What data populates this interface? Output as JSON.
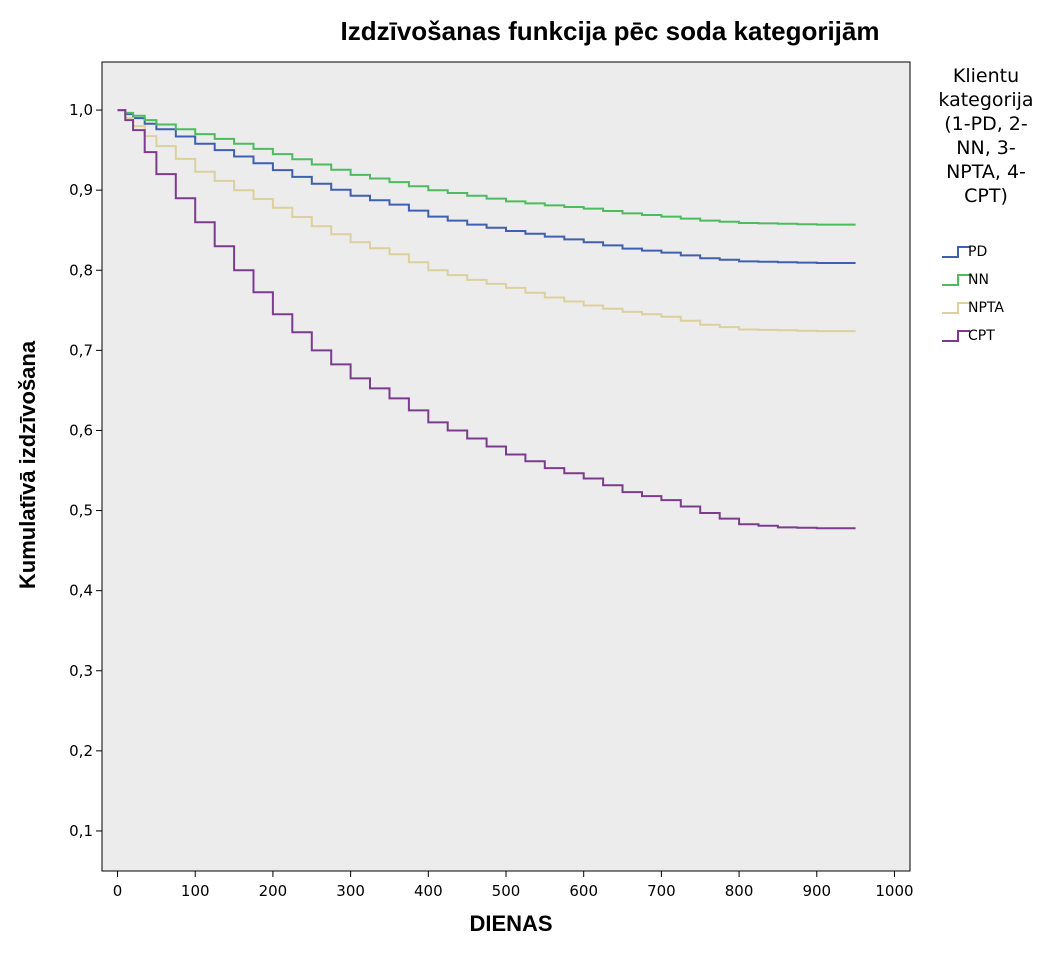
{
  "chart_data": {
    "type": "line",
    "title": "Izdzīvošanas funkcija pēc soda kategorijām",
    "xlabel": "DIENAS",
    "ylabel": "Kumulatīvā izdzīvošana",
    "xlim": [
      -20,
      1020
    ],
    "ylim": [
      0.05,
      1.06
    ],
    "xticks": [
      0,
      100,
      200,
      300,
      400,
      500,
      600,
      700,
      800,
      900,
      1000
    ],
    "xtick_labels": [
      "0",
      "100",
      "200",
      "300",
      "400",
      "500",
      "600",
      "700",
      "800",
      "900",
      "1000"
    ],
    "yticks": [
      0.1,
      0.2,
      0.3,
      0.4,
      0.5,
      0.6,
      0.7,
      0.8,
      0.9,
      1.0
    ],
    "ytick_labels": [
      "0,1",
      "0,2",
      "0,3",
      "0,4",
      "0,5",
      "0,6",
      "0,7",
      "0,8",
      "0,9",
      "1,0"
    ],
    "grid": false,
    "plot_background": "#ececec",
    "legend": {
      "position": "right",
      "title_lines": [
        "Klientu",
        "kategorija",
        "(1-PD, 2-",
        "NN, 3-",
        "NPTA, 4-",
        "CPT)"
      ]
    },
    "series": [
      {
        "name": "PD",
        "color": "#3f5fb0",
        "x": [
          0,
          20,
          50,
          100,
          150,
          200,
          250,
          300,
          350,
          400,
          450,
          500,
          550,
          600,
          650,
          700,
          750,
          800,
          850,
          900,
          950
        ],
        "y": [
          1.0,
          0.99,
          0.976,
          0.958,
          0.942,
          0.925,
          0.908,
          0.893,
          0.882,
          0.867,
          0.857,
          0.849,
          0.842,
          0.835,
          0.827,
          0.822,
          0.815,
          0.811,
          0.81,
          0.809,
          0.809
        ]
      },
      {
        "name": "NN",
        "color": "#4dbb5e",
        "x": [
          0,
          20,
          50,
          100,
          150,
          200,
          250,
          300,
          350,
          400,
          450,
          500,
          550,
          600,
          650,
          700,
          750,
          800,
          850,
          900,
          950
        ],
        "y": [
          1.0,
          0.993,
          0.982,
          0.97,
          0.958,
          0.945,
          0.932,
          0.919,
          0.91,
          0.9,
          0.893,
          0.886,
          0.881,
          0.877,
          0.871,
          0.867,
          0.862,
          0.859,
          0.858,
          0.857,
          0.857
        ]
      },
      {
        "name": "NPTA",
        "color": "#dcd09c",
        "x": [
          0,
          20,
          50,
          100,
          150,
          200,
          250,
          300,
          350,
          400,
          450,
          500,
          550,
          600,
          650,
          700,
          750,
          800,
          850,
          900,
          950
        ],
        "y": [
          1.0,
          0.98,
          0.955,
          0.923,
          0.9,
          0.878,
          0.855,
          0.835,
          0.82,
          0.8,
          0.788,
          0.778,
          0.766,
          0.756,
          0.748,
          0.742,
          0.732,
          0.726,
          0.725,
          0.724,
          0.724
        ]
      },
      {
        "name": "CPT",
        "color": "#7d3b8f",
        "x": [
          0,
          20,
          50,
          100,
          150,
          200,
          250,
          300,
          350,
          400,
          450,
          500,
          550,
          600,
          650,
          700,
          750,
          800,
          850,
          900,
          950
        ],
        "y": [
          1.0,
          0.975,
          0.92,
          0.86,
          0.8,
          0.745,
          0.7,
          0.665,
          0.64,
          0.61,
          0.59,
          0.57,
          0.553,
          0.54,
          0.523,
          0.513,
          0.497,
          0.483,
          0.479,
          0.478,
          0.478
        ]
      }
    ]
  }
}
